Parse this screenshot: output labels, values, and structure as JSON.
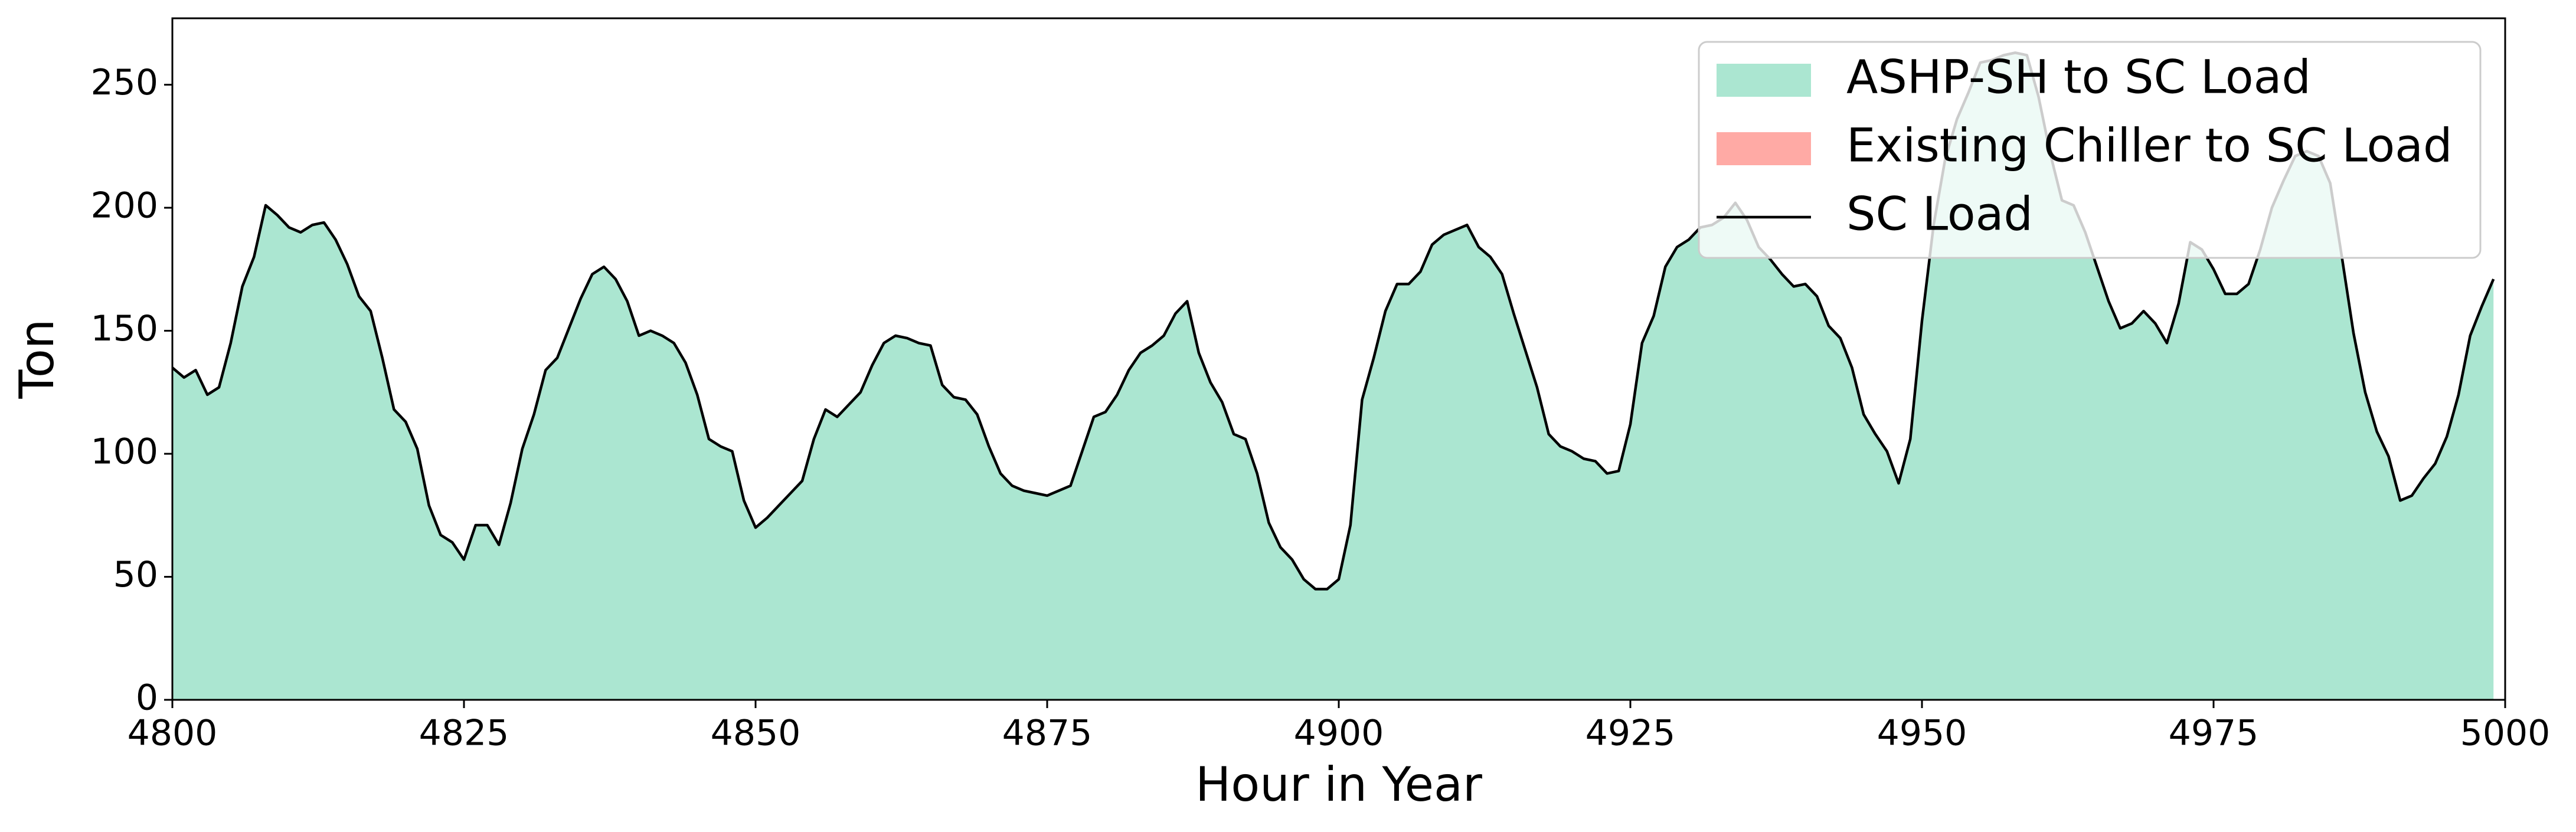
{
  "chart_data": {
    "type": "area",
    "x_label": "Hour in Year",
    "y_label": "Ton",
    "xlim": [
      4800,
      5000
    ],
    "xticks": [
      4800,
      4825,
      4850,
      4875,
      4900,
      4925,
      4950,
      4975,
      5000
    ],
    "ylim": [
      0,
      277
    ],
    "yticks": [
      0,
      50,
      100,
      150,
      200,
      250
    ],
    "legend": "upper right",
    "x": [
      4800,
      4801,
      4802,
      4803,
      4804,
      4805,
      4806,
      4807,
      4808,
      4809,
      4810,
      4811,
      4812,
      4813,
      4814,
      4815,
      4816,
      4817,
      4818,
      4819,
      4820,
      4821,
      4822,
      4823,
      4824,
      4825,
      4826,
      4827,
      4828,
      4829,
      4830,
      4831,
      4832,
      4833,
      4834,
      4835,
      4836,
      4837,
      4838,
      4839,
      4840,
      4841,
      4842,
      4843,
      4844,
      4845,
      4846,
      4847,
      4848,
      4849,
      4850,
      4851,
      4852,
      4853,
      4854,
      4855,
      4856,
      4857,
      4858,
      4859,
      4860,
      4861,
      4862,
      4863,
      4864,
      4865,
      4866,
      4867,
      4868,
      4869,
      4870,
      4871,
      4872,
      4873,
      4874,
      4875,
      4876,
      4877,
      4878,
      4879,
      4880,
      4881,
      4882,
      4883,
      4884,
      4885,
      4886,
      4887,
      4888,
      4889,
      4890,
      4891,
      4892,
      4893,
      4894,
      4895,
      4896,
      4897,
      4898,
      4899,
      4900,
      4901,
      4902,
      4903,
      4904,
      4905,
      4906,
      4907,
      4908,
      4909,
      4910,
      4911,
      4912,
      4913,
      4914,
      4915,
      4916,
      4917,
      4918,
      4919,
      4920,
      4921,
      4922,
      4923,
      4924,
      4925,
      4926,
      4927,
      4928,
      4929,
      4930,
      4931,
      4932,
      4933,
      4934,
      4935,
      4936,
      4937,
      4938,
      4939,
      4940,
      4941,
      4942,
      4943,
      4944,
      4945,
      4946,
      4947,
      4948,
      4949,
      4950,
      4951,
      4952,
      4953,
      4954,
      4955,
      4956,
      4957,
      4958,
      4959,
      4960,
      4961,
      4962,
      4963,
      4964,
      4965,
      4966,
      4967,
      4968,
      4969,
      4970,
      4971,
      4972,
      4973,
      4974,
      4975,
      4976,
      4977,
      4978,
      4979,
      4980,
      4981,
      4982,
      4983,
      4984,
      4985,
      4986,
      4987,
      4988,
      4989,
      4990,
      4991,
      4992,
      4993,
      4994,
      4995,
      4996,
      4997,
      4998,
      4999
    ],
    "series": [
      {
        "name": "ASHP-SH to SC Load",
        "type": "area",
        "color": "#abe6d1",
        "values": [
          135,
          131,
          134,
          124,
          127,
          145,
          168,
          180,
          201,
          197,
          192,
          190,
          193,
          194,
          187,
          177,
          164,
          158,
          139,
          118,
          113,
          102,
          79,
          67,
          64,
          57,
          71,
          71,
          63,
          80,
          102,
          116,
          134,
          139,
          151,
          163,
          173,
          176,
          171,
          162,
          148,
          150,
          148,
          145,
          137,
          124,
          106,
          103,
          101,
          81,
          70,
          74,
          79,
          84,
          89,
          106,
          118,
          115,
          120,
          125,
          136,
          145,
          148,
          147,
          145,
          144,
          128,
          123,
          122,
          116,
          103,
          92,
          87,
          85,
          84,
          83,
          85,
          87,
          101,
          115,
          117,
          124,
          134,
          141,
          144,
          148,
          157,
          162,
          141,
          129,
          121,
          108,
          106,
          92,
          72,
          62,
          57,
          49,
          45,
          45,
          49,
          71,
          122,
          139,
          158,
          169,
          169,
          174,
          185,
          189,
          191,
          193,
          184,
          180,
          173,
          157,
          142,
          127,
          108,
          103,
          101,
          98,
          97,
          92,
          93,
          112,
          145,
          156,
          176,
          184,
          187,
          192,
          193,
          196,
          202,
          195,
          184,
          179,
          173,
          168,
          169,
          164,
          152,
          147,
          135,
          116,
          108,
          101,
          88,
          106,
          154,
          193,
          220,
          236,
          247,
          259,
          260,
          262,
          263,
          262,
          245,
          222,
          203,
          201,
          190,
          176,
          162,
          151,
          153,
          158,
          153,
          145,
          161,
          186,
          183,
          175,
          165,
          165,
          169,
          183,
          200,
          211,
          221,
          223,
          221,
          210,
          180,
          149,
          125,
          109,
          99,
          81,
          83,
          90,
          96,
          107,
          124,
          148,
          160,
          171
        ]
      },
      {
        "name": "Existing Chiller to SC Load",
        "type": "area",
        "color": "#ffaaa5",
        "values": [
          0,
          0,
          0,
          0,
          0,
          0,
          0,
          0,
          0,
          0,
          0,
          0,
          0,
          0,
          0,
          0,
          0,
          0,
          0,
          0,
          0,
          0,
          0,
          0,
          0,
          0,
          0,
          0,
          0,
          0,
          0,
          0,
          0,
          0,
          0,
          0,
          0,
          0,
          0,
          0,
          0,
          0,
          0,
          0,
          0,
          0,
          0,
          0,
          0,
          0,
          0,
          0,
          0,
          0,
          0,
          0,
          0,
          0,
          0,
          0,
          0,
          0,
          0,
          0,
          0,
          0,
          0,
          0,
          0,
          0,
          0,
          0,
          0,
          0,
          0,
          0,
          0,
          0,
          0,
          0,
          0,
          0,
          0,
          0,
          0,
          0,
          0,
          0,
          0,
          0,
          0,
          0,
          0,
          0,
          0,
          0,
          0,
          0,
          0,
          0,
          0,
          0,
          0,
          0,
          0,
          0,
          0,
          0,
          0,
          0,
          0,
          0,
          0,
          0,
          0,
          0,
          0,
          0,
          0,
          0,
          0,
          0,
          0,
          0,
          0,
          0,
          0,
          0,
          0,
          0,
          0,
          0,
          0,
          0,
          0,
          0,
          0,
          0,
          0,
          0,
          0,
          0,
          0,
          0,
          0,
          0,
          0,
          0,
          0,
          0,
          0,
          0,
          0,
          0,
          0,
          0,
          0,
          0,
          0,
          0,
          0,
          0,
          0,
          0,
          0,
          0,
          0,
          0,
          0,
          0,
          0,
          0,
          0,
          0,
          0,
          0,
          0,
          0,
          0,
          0,
          0,
          0,
          0,
          0,
          0,
          0,
          0,
          0,
          0,
          0,
          0,
          0,
          0,
          0,
          0,
          0,
          0,
          0,
          0,
          0
        ]
      },
      {
        "name": "SC Load",
        "type": "line",
        "color": "#000000",
        "values": [
          135,
          131,
          134,
          124,
          127,
          145,
          168,
          180,
          201,
          197,
          192,
          190,
          193,
          194,
          187,
          177,
          164,
          158,
          139,
          118,
          113,
          102,
          79,
          67,
          64,
          57,
          71,
          71,
          63,
          80,
          102,
          116,
          134,
          139,
          151,
          163,
          173,
          176,
          171,
          162,
          148,
          150,
          148,
          145,
          137,
          124,
          106,
          103,
          101,
          81,
          70,
          74,
          79,
          84,
          89,
          106,
          118,
          115,
          120,
          125,
          136,
          145,
          148,
          147,
          145,
          144,
          128,
          123,
          122,
          116,
          103,
          92,
          87,
          85,
          84,
          83,
          85,
          87,
          101,
          115,
          117,
          124,
          134,
          141,
          144,
          148,
          157,
          162,
          141,
          129,
          121,
          108,
          106,
          92,
          72,
          62,
          57,
          49,
          45,
          45,
          49,
          71,
          122,
          139,
          158,
          169,
          169,
          174,
          185,
          189,
          191,
          193,
          184,
          180,
          173,
          157,
          142,
          127,
          108,
          103,
          101,
          98,
          97,
          92,
          93,
          112,
          145,
          156,
          176,
          184,
          187,
          192,
          193,
          196,
          202,
          195,
          184,
          179,
          173,
          168,
          169,
          164,
          152,
          147,
          135,
          116,
          108,
          101,
          88,
          106,
          154,
          193,
          220,
          236,
          247,
          259,
          260,
          262,
          263,
          262,
          245,
          222,
          203,
          201,
          190,
          176,
          162,
          151,
          153,
          158,
          153,
          145,
          161,
          186,
          183,
          175,
          165,
          165,
          169,
          183,
          200,
          211,
          221,
          223,
          221,
          210,
          180,
          149,
          125,
          109,
          99,
          81,
          83,
          90,
          96,
          107,
          124,
          148,
          160,
          171
        ]
      }
    ]
  }
}
